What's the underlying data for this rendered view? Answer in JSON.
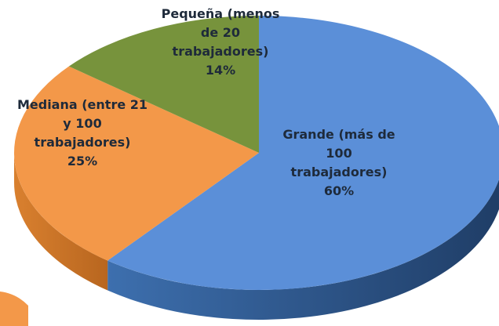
{
  "chart_data": {
    "type": "pie",
    "categories": [
      "Grande (más de 100 trabajadores)",
      "Mediana (entre 21 y 100 trabajadores)",
      "Pequeña (menos de 20 trabajadores)"
    ],
    "values": [
      60,
      25,
      14
    ],
    "value_labels": [
      "60%",
      "25%",
      "14%"
    ],
    "colors": [
      "#5b8fd8",
      "#f39849",
      "#77933c"
    ]
  }
}
